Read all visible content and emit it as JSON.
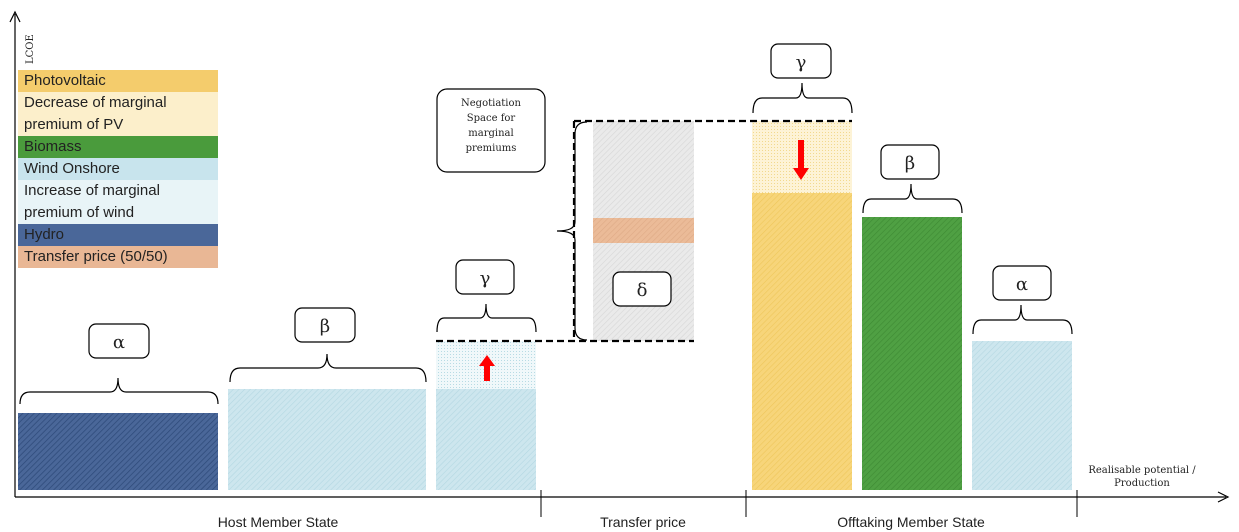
{
  "axes": {
    "y_label": "LCOE",
    "x_label_line1": "Realisable potential /",
    "x_label_line2": "Production"
  },
  "sections": {
    "host": "Host Member State",
    "transfer": "Transfer price",
    "offtaking": "Offtaking Member State"
  },
  "legend": {
    "photovoltaic": "Photovoltaic",
    "pv_decrease_1": "Decrease of marginal",
    "pv_decrease_2": "premium of PV",
    "biomass": "Biomass",
    "wind_onshore": "Wind Onshore",
    "wind_increase_1": "Increase of marginal",
    "wind_increase_2": "premium of wind",
    "hydro": "Hydro",
    "transfer_price": "Transfer price (50/50)"
  },
  "greek": {
    "host_alpha": "α",
    "host_beta": "β",
    "host_gamma": "γ",
    "delta": "δ",
    "off_gamma": "γ",
    "off_beta": "β",
    "off_alpha": "α"
  },
  "negotiation": {
    "line1": "Negotiation",
    "line2": "Space for",
    "line3": "marginal",
    "line4": "premiums"
  },
  "colors": {
    "photovoltaic": "#f5cf6a",
    "photovoltaic_light": "#fbe8b4",
    "biomass": "#4a9b3c",
    "wind": "#c6e3ec",
    "wind_light": "#e2f1f5",
    "hydro": "#3f5c8e",
    "transfer": "#e8b48f",
    "negotiation_grey": "#e6e6e6",
    "arrow_red": "#ff0000"
  },
  "icons": {
    "up_arrow": "red-up-arrow-icon",
    "down_arrow": "red-down-arrow-icon"
  }
}
